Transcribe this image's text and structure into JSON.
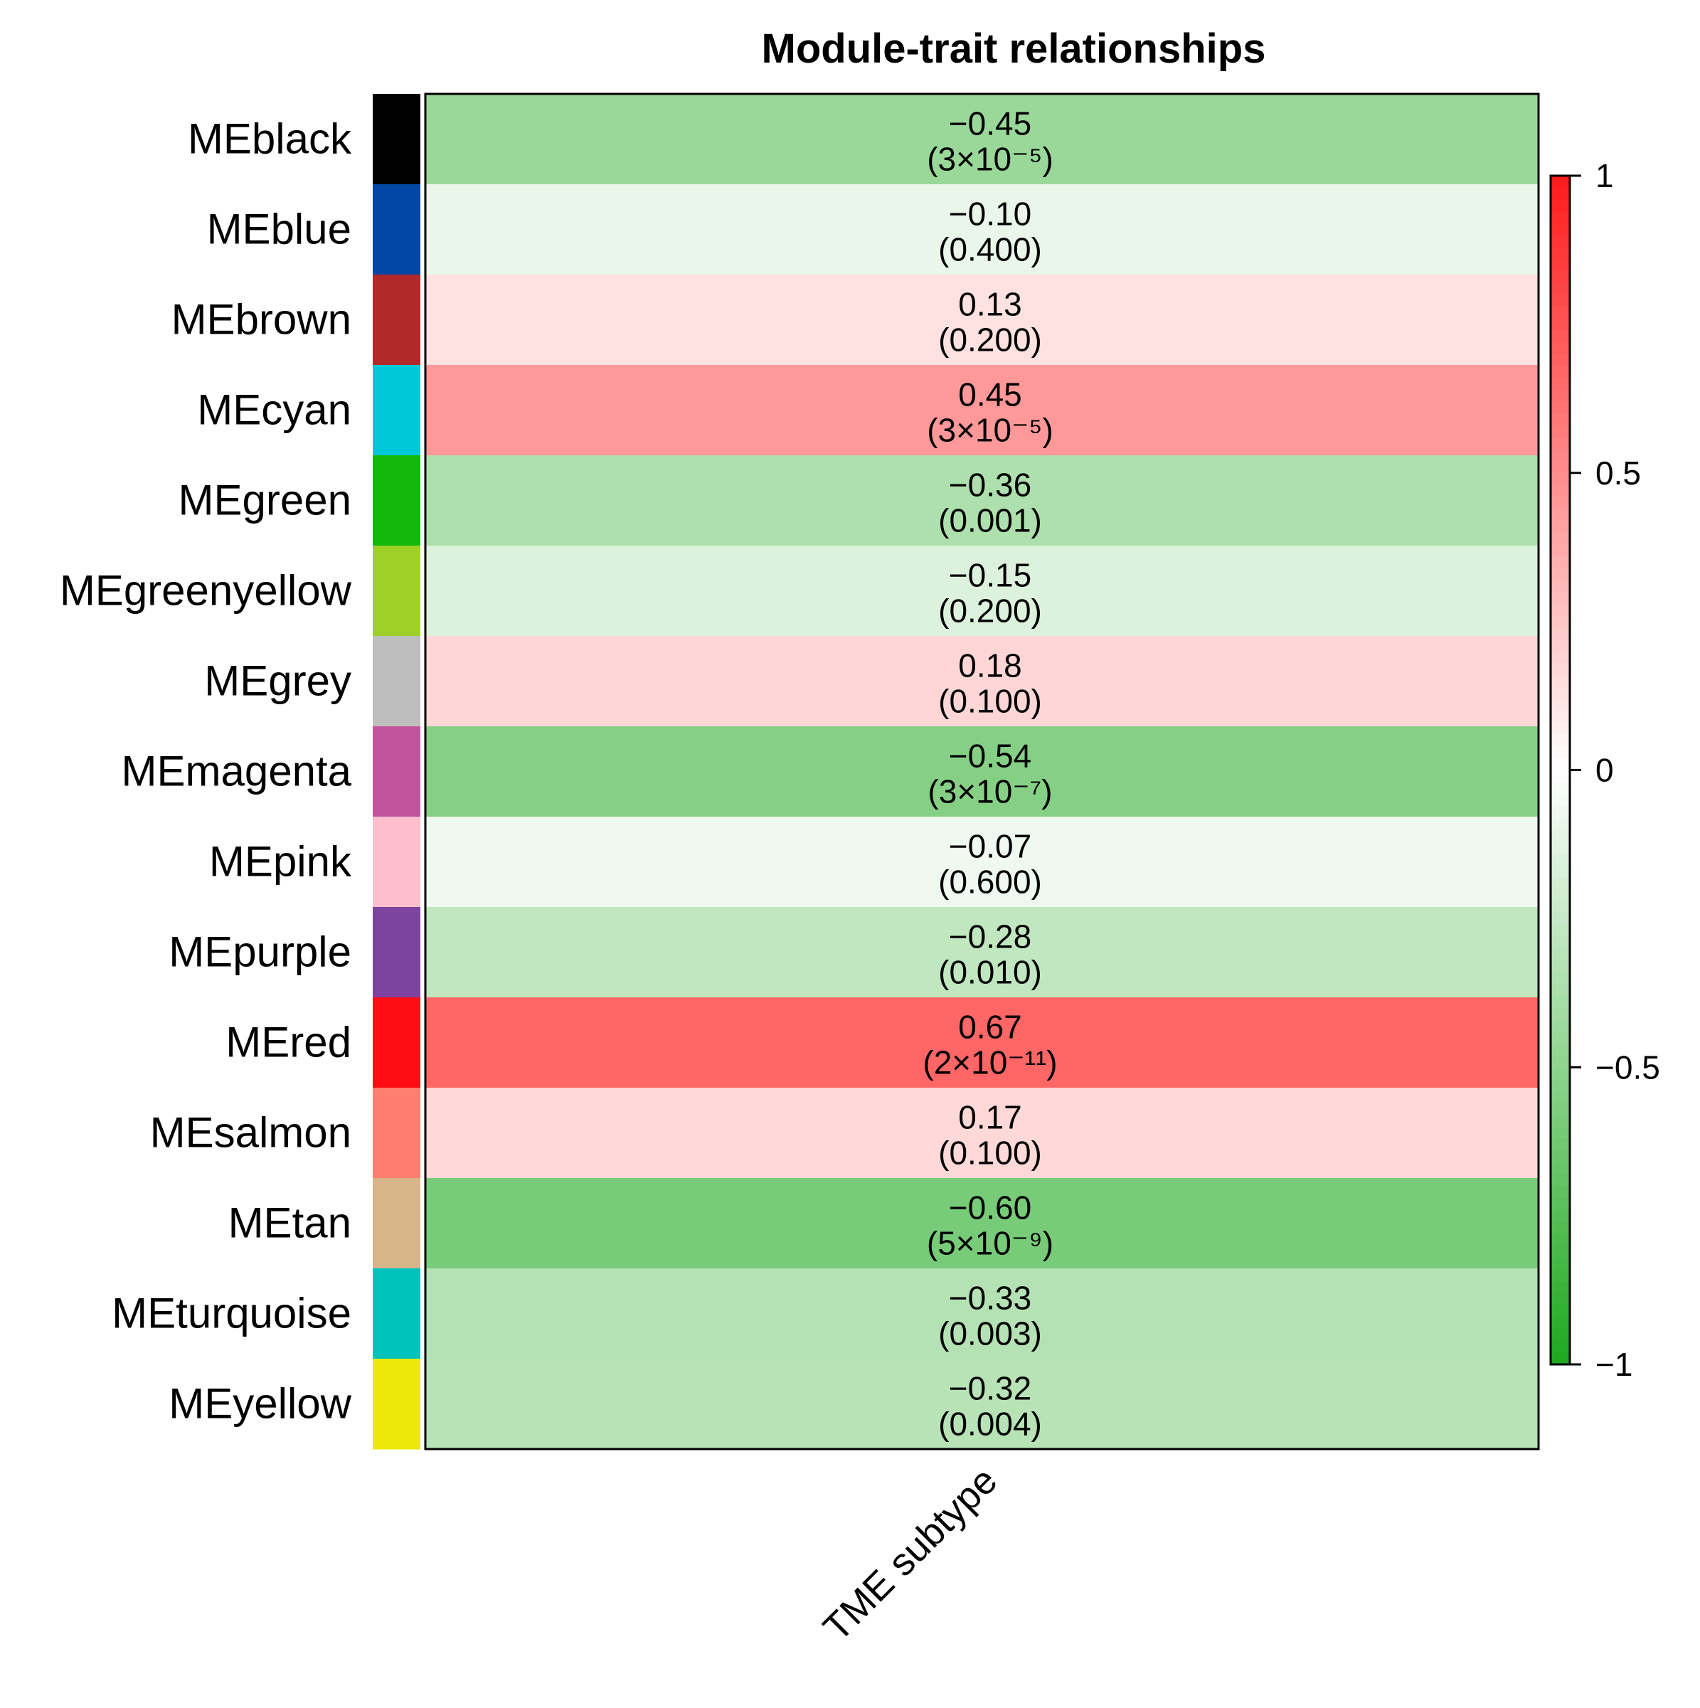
{
  "chart_data": {
    "type": "heatmap",
    "title": "Module-trait relationships",
    "x_categories": [
      "TME subtype"
    ],
    "rows": [
      {
        "label": "MEblack",
        "module_color": "#000000",
        "value": -0.45,
        "pvalue": "(3×10⁻⁵)"
      },
      {
        "label": "MEblue",
        "module_color": "#0047A6",
        "value": -0.1,
        "pvalue": "(0.400)"
      },
      {
        "label": "MEbrown",
        "module_color": "#B22828",
        "value": 0.13,
        "pvalue": "(0.200)"
      },
      {
        "label": "MEcyan",
        "module_color": "#00C8D8",
        "value": 0.45,
        "pvalue": "(3×10⁻⁵)"
      },
      {
        "label": "MEgreen",
        "module_color": "#14B80A",
        "value": -0.36,
        "pvalue": "(0.001)"
      },
      {
        "label": "MEgreenyellow",
        "module_color": "#9DD128",
        "value": -0.15,
        "pvalue": "(0.200)"
      },
      {
        "label": "MEgrey",
        "module_color": "#BFBEBE",
        "value": 0.18,
        "pvalue": "(0.100)"
      },
      {
        "label": "MEmagenta",
        "module_color": "#C2549E",
        "value": -0.54,
        "pvalue": "(3×10⁻⁷)"
      },
      {
        "label": "MEpink",
        "module_color": "#FFBECC",
        "value": -0.07,
        "pvalue": "(0.600)"
      },
      {
        "label": "MEpurple",
        "module_color": "#7C449E",
        "value": -0.28,
        "pvalue": "(0.010)"
      },
      {
        "label": "MEred",
        "module_color": "#FF0C14",
        "value": 0.67,
        "pvalue": "(2×10⁻¹¹)"
      },
      {
        "label": "MEsalmon",
        "module_color": "#FF7E6E",
        "value": 0.17,
        "pvalue": "(0.100)"
      },
      {
        "label": "MEtan",
        "module_color": "#D7B48A",
        "value": -0.6,
        "pvalue": "(5×10⁻⁹)"
      },
      {
        "label": "MEturquoise",
        "module_color": "#00C2BC",
        "value": -0.33,
        "pvalue": "(0.003)"
      },
      {
        "label": "MEyellow",
        "module_color": "#EDE80A",
        "value": -0.32,
        "pvalue": "(0.004)"
      }
    ],
    "cell_values": [
      "−0.45",
      "−0.10",
      "0.13",
      "0.45",
      "−0.36",
      "−0.15",
      "0.18",
      "−0.54",
      "−0.07",
      "−0.28",
      "0.67",
      "0.17",
      "−0.60",
      "−0.33",
      "−0.32"
    ],
    "color_scale": {
      "min": -1,
      "max": 1,
      "low_color": "#1EA81E",
      "mid_color": "#FFFFFF",
      "high_color": "#FF1A1A",
      "ticks": [
        1,
        0.5,
        0,
        -0.5,
        -1
      ],
      "tick_labels": [
        "1",
        "0.5",
        "0",
        "−0.5",
        "−1"
      ]
    },
    "legend": "right"
  }
}
